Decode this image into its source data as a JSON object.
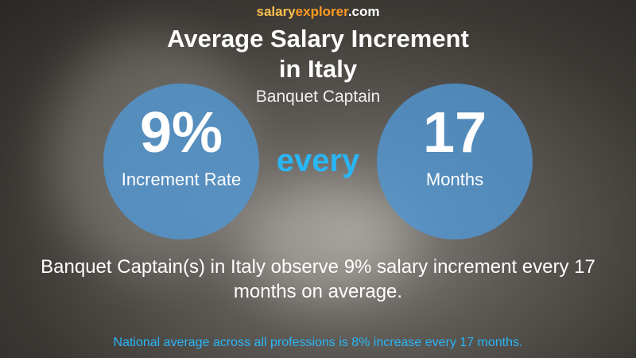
{
  "brand": {
    "parts": [
      "salary",
      "explorer",
      ".com"
    ]
  },
  "title": {
    "lines": [
      "Average Salary Increment",
      "in Italy"
    ]
  },
  "subtitle": "Banquet Captain",
  "left_circle": {
    "value": "9%",
    "label": "Increment Rate"
  },
  "connector": "every",
  "right_circle": {
    "value": "17",
    "label": "Months"
  },
  "description": "Banquet Captain(s) in Italy observe 9% salary increment every 17 months on average.",
  "footnote": "National average across all professions is 8% increase every 17 months."
}
